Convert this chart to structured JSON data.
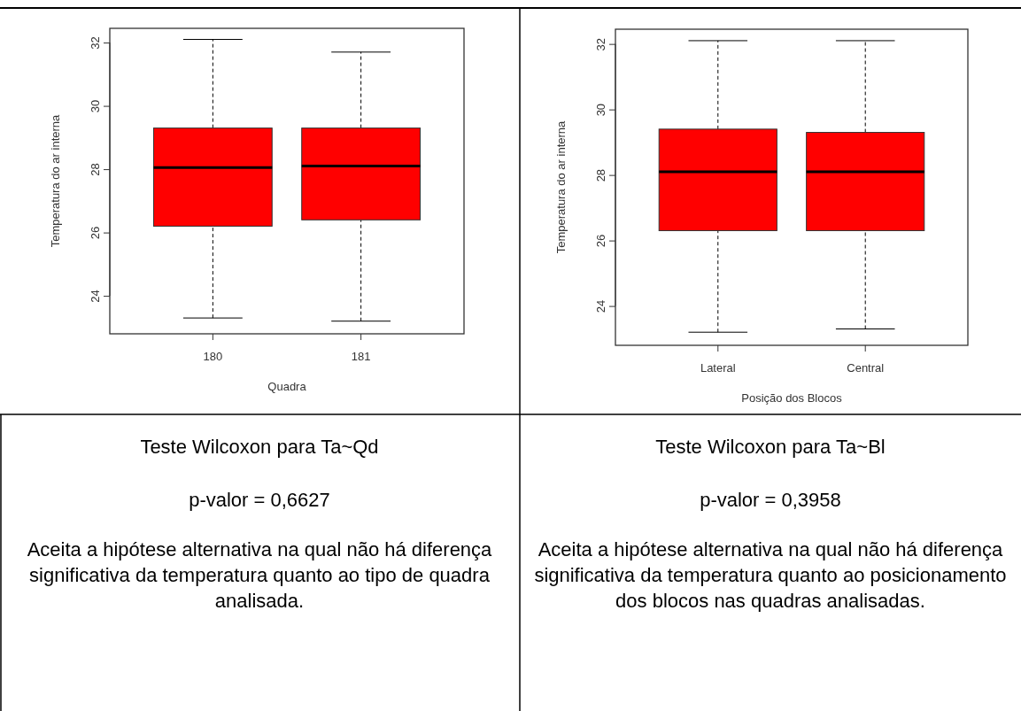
{
  "chart_data": [
    {
      "type": "box",
      "xlabel": "Quadra",
      "ylabel": "Temperatura do ar interna",
      "categories": [
        "180",
        "181"
      ],
      "ylim": [
        22.8,
        32.45
      ],
      "yticks": [
        24,
        26,
        28,
        30,
        32
      ],
      "grid": false,
      "color": "#ff0000",
      "boxes": [
        {
          "low": 23.3,
          "q1": 26.2,
          "median": 28.05,
          "q3": 29.3,
          "high": 32.1
        },
        {
          "low": 23.2,
          "q1": 26.4,
          "median": 28.1,
          "q3": 29.3,
          "high": 31.7
        }
      ],
      "annotations": [
        "Teste Wilcoxon para Ta~Qd",
        "p-valor = 0,6627",
        "Aceita a hipótese alternativa na qual não há diferença significativa da temperatura quanto ao tipo de quadra analisada."
      ]
    },
    {
      "type": "box",
      "xlabel": "Posição dos Blocos",
      "ylabel": "Temperatura do ar interna",
      "categories": [
        "Lateral",
        "Central"
      ],
      "ylim": [
        22.8,
        32.45
      ],
      "yticks": [
        24,
        26,
        28,
        30,
        32
      ],
      "grid": false,
      "color": "#ff0000",
      "boxes": [
        {
          "low": 23.2,
          "q1": 26.3,
          "median": 28.1,
          "q3": 29.4,
          "high": 32.1
        },
        {
          "low": 23.3,
          "q1": 26.3,
          "median": 28.1,
          "q3": 29.3,
          "high": 32.1
        }
      ],
      "annotations": [
        "Teste Wilcoxon para Ta~Bl",
        "p-valor = 0,3958",
        "Aceita a hipótese alternativa na qual não há diferença significativa da temperatura quanto ao posicionamento dos blocos nas quadras analisadas."
      ]
    }
  ]
}
